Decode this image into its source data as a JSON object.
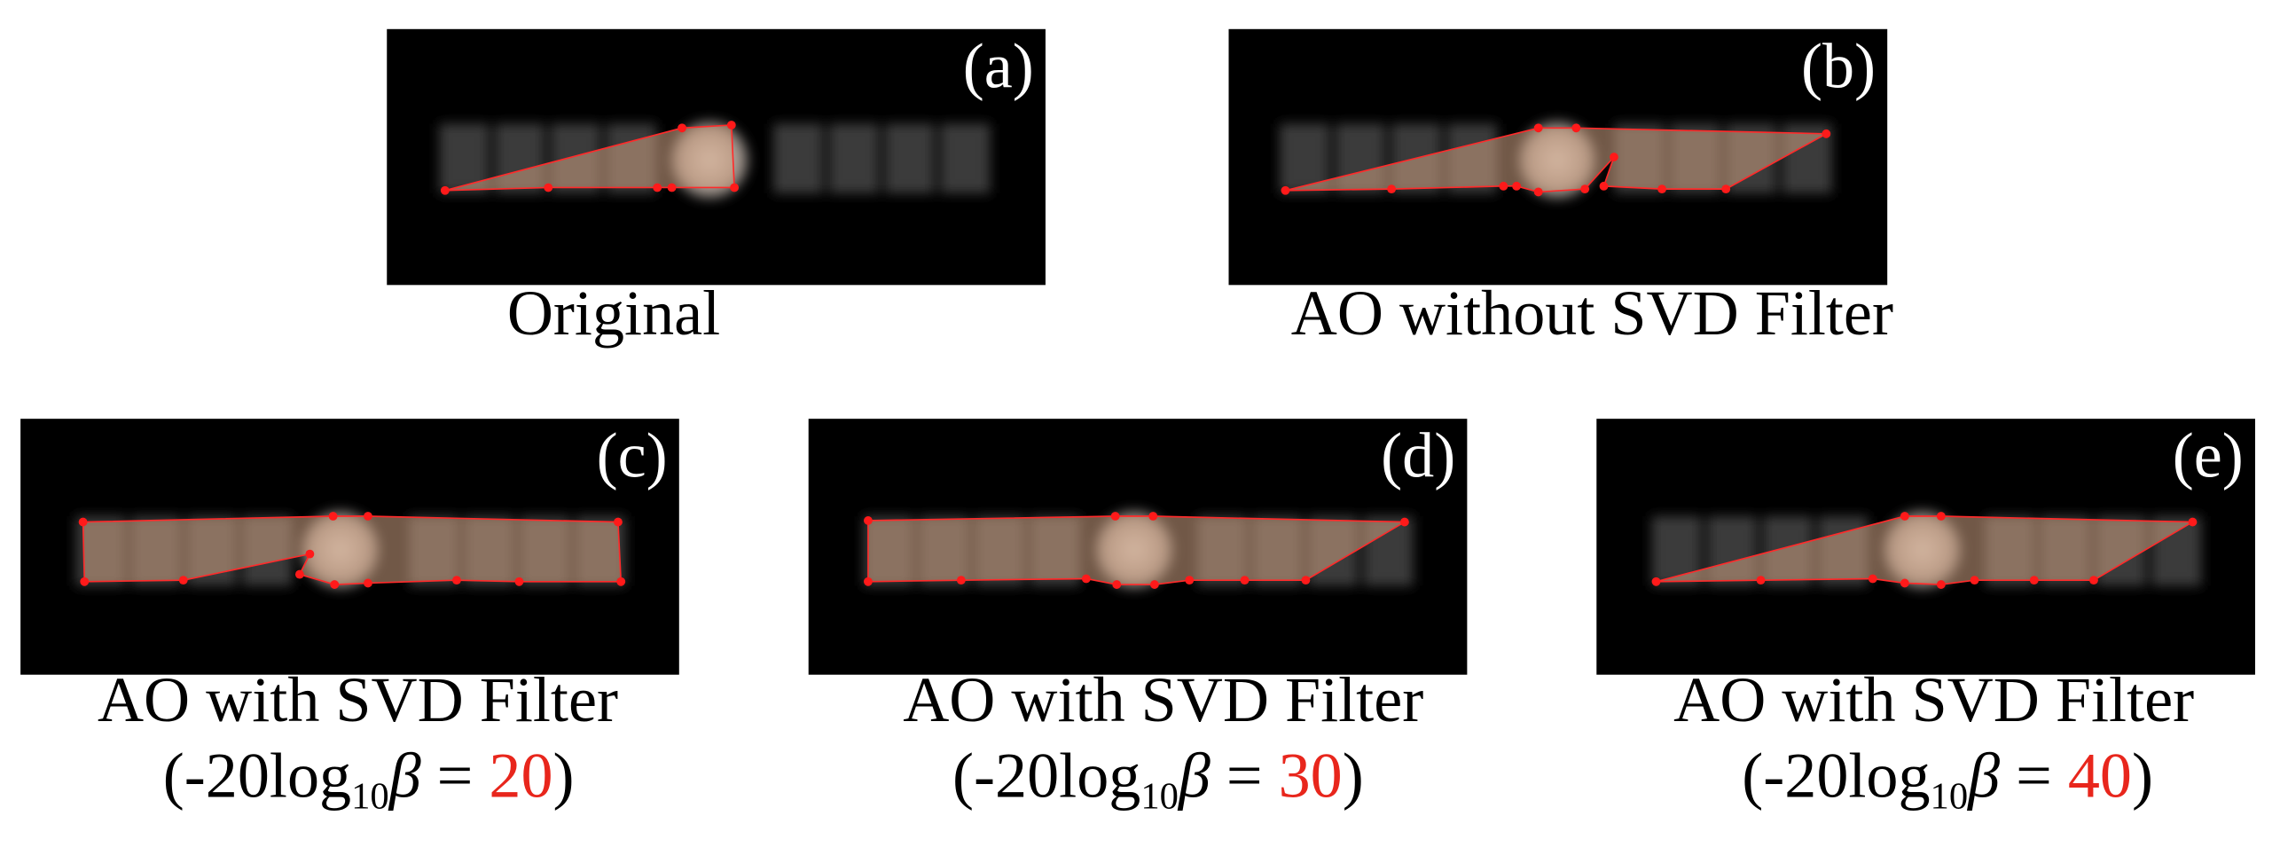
{
  "panels": [
    {
      "tag": "(a)",
      "caption": "Original"
    },
    {
      "tag": "(b)",
      "caption": "AO without SVD Filter"
    },
    {
      "tag": "(c)",
      "caption": "AO with SVD Filter",
      "formula": {
        "prefix": "(-20log",
        "subscript": "10",
        "symbol": "β",
        "equals": " = ",
        "value": 20,
        "suffix": ")"
      }
    },
    {
      "tag": "(d)",
      "caption": "AO with SVD Filter",
      "formula": {
        "prefix": "(-20log",
        "subscript": "10",
        "symbol": "β",
        "equals": " = ",
        "value": 30,
        "suffix": ")"
      }
    },
    {
      "tag": "(e)",
      "caption": "AO with SVD Filter",
      "formula": {
        "prefix": "(-20log",
        "subscript": "10",
        "symbol": "β",
        "equals": " = ",
        "value": 40,
        "suffix": ")"
      }
    }
  ]
}
